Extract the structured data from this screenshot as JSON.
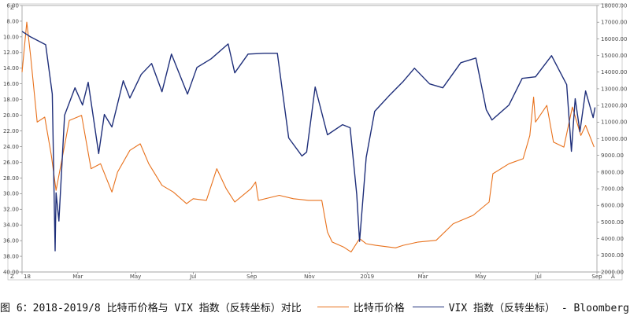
{
  "chart_data": {
    "type": "line",
    "x_range": [
      "2018-01-01",
      "2019-09-01"
    ],
    "x_ticks": [
      {
        "date": "2018-01-01",
        "label": "18"
      },
      {
        "date": "2018-03-01",
        "label": "Mar"
      },
      {
        "date": "2018-05-01",
        "label": "May"
      },
      {
        "date": "2018-07-01",
        "label": "Jul"
      },
      {
        "date": "2018-09-01",
        "label": "Sep"
      },
      {
        "date": "2018-11-01",
        "label": "Nov"
      },
      {
        "date": "2019-01-01",
        "label": "2019"
      },
      {
        "date": "2019-03-01",
        "label": "Mar"
      },
      {
        "date": "2019-05-01",
        "label": "May"
      },
      {
        "date": "2019-07-01",
        "label": "Jul"
      },
      {
        "date": "2019-09-01",
        "label": "Sep"
      }
    ],
    "left_axis": {
      "reversed": true,
      "range": [
        6,
        40
      ],
      "ticks": [
        "6.00",
        "8.00",
        "10.00",
        "12.00",
        "14.00",
        "16.00",
        "18.00",
        "20.00",
        "22.00",
        "24.00",
        "26.00",
        "28.00",
        "30.00",
        "32.00",
        "34.00",
        "36.00",
        "38.00",
        "40.00"
      ],
      "tick_values": [
        6,
        8,
        10,
        12,
        14,
        16,
        18,
        20,
        22,
        24,
        26,
        28,
        30,
        32,
        34,
        36,
        38,
        40
      ]
    },
    "right_axis": {
      "range": [
        2000,
        18000
      ],
      "ticks": [
        "2000.00",
        "3000.00",
        "4000.00",
        "5000.00",
        "6000.00",
        "7000.00",
        "8000.00",
        "9000.00",
        "10000.00",
        "11000.00",
        "12000.00",
        "13000.00",
        "14000.00",
        "15000.00",
        "16000.00",
        "17000.00",
        "18000.00"
      ],
      "tick_values": [
        2000,
        3000,
        4000,
        5000,
        6000,
        7000,
        8000,
        9000,
        10000,
        11000,
        12000,
        13000,
        14000,
        15000,
        16000,
        17000,
        18000
      ]
    },
    "corner_labels": {
      "left_top": "Z",
      "left_bottom": "Z",
      "right_bottom": "A"
    },
    "series": [
      {
        "name": "比特币价格",
        "color": "#e8711c",
        "axis": "right",
        "points": [
          [
            "2018-01-01",
            14000
          ],
          [
            "2018-01-06",
            17000
          ],
          [
            "2018-01-10",
            15000
          ],
          [
            "2018-01-17",
            11000
          ],
          [
            "2018-01-25",
            11300
          ],
          [
            "2018-02-01",
            9000
          ],
          [
            "2018-02-06",
            6900
          ],
          [
            "2018-02-20",
            11100
          ],
          [
            "2018-03-05",
            11400
          ],
          [
            "2018-03-15",
            8200
          ],
          [
            "2018-03-25",
            8500
          ],
          [
            "2018-04-06",
            6800
          ],
          [
            "2018-04-12",
            8000
          ],
          [
            "2018-04-25",
            9300
          ],
          [
            "2018-05-06",
            9700
          ],
          [
            "2018-05-15",
            8500
          ],
          [
            "2018-05-29",
            7200
          ],
          [
            "2018-06-10",
            6800
          ],
          [
            "2018-06-24",
            6100
          ],
          [
            "2018-07-01",
            6400
          ],
          [
            "2018-07-15",
            6300
          ],
          [
            "2018-07-26",
            8200
          ],
          [
            "2018-08-05",
            7000
          ],
          [
            "2018-08-14",
            6200
          ],
          [
            "2018-08-31",
            7000
          ],
          [
            "2018-09-05",
            7400
          ],
          [
            "2018-09-08",
            6300
          ],
          [
            "2018-09-30",
            6600
          ],
          [
            "2018-10-15",
            6400
          ],
          [
            "2018-10-31",
            6300
          ],
          [
            "2018-11-14",
            6300
          ],
          [
            "2018-11-20",
            4400
          ],
          [
            "2018-11-25",
            3800
          ],
          [
            "2018-12-07",
            3500
          ],
          [
            "2018-12-15",
            3200
          ],
          [
            "2018-12-24",
            4000
          ],
          [
            "2018-12-31",
            3700
          ],
          [
            "2019-01-10",
            3600
          ],
          [
            "2019-01-31",
            3450
          ],
          [
            "2019-02-08",
            3600
          ],
          [
            "2019-02-24",
            3800
          ],
          [
            "2019-03-15",
            3900
          ],
          [
            "2019-04-02",
            4900
          ],
          [
            "2019-04-23",
            5400
          ],
          [
            "2019-05-10",
            6200
          ],
          [
            "2019-05-14",
            7900
          ],
          [
            "2019-05-31",
            8500
          ],
          [
            "2019-06-15",
            8800
          ],
          [
            "2019-06-22",
            10200
          ],
          [
            "2019-06-26",
            12500
          ],
          [
            "2019-06-28",
            11000
          ],
          [
            "2019-07-10",
            12000
          ],
          [
            "2019-07-17",
            9800
          ],
          [
            "2019-07-28",
            9500
          ],
          [
            "2019-08-06",
            11900
          ],
          [
            "2019-08-15",
            10200
          ],
          [
            "2019-08-20",
            10800
          ],
          [
            "2019-08-29",
            9500
          ]
        ]
      },
      {
        "name": "VIX 指数（反转坐标）",
        "color": "#1f2f7a",
        "axis": "left",
        "points": [
          [
            "2018-01-01",
            9.3
          ],
          [
            "2018-01-10",
            10.0
          ],
          [
            "2018-01-26",
            11.0
          ],
          [
            "2018-02-02",
            17.3
          ],
          [
            "2018-02-05",
            37.3
          ],
          [
            "2018-02-06",
            29.9
          ],
          [
            "2018-02-09",
            33.5
          ],
          [
            "2018-02-15",
            20.0
          ],
          [
            "2018-02-26",
            16.5
          ],
          [
            "2018-03-06",
            18.7
          ],
          [
            "2018-03-12",
            15.8
          ],
          [
            "2018-03-23",
            24.9
          ],
          [
            "2018-03-29",
            19.9
          ],
          [
            "2018-04-06",
            21.5
          ],
          [
            "2018-04-18",
            15.6
          ],
          [
            "2018-04-25",
            17.8
          ],
          [
            "2018-05-07",
            14.8
          ],
          [
            "2018-05-18",
            13.4
          ],
          [
            "2018-05-29",
            17.0
          ],
          [
            "2018-06-08",
            12.2
          ],
          [
            "2018-06-25",
            17.3
          ],
          [
            "2018-07-05",
            13.9
          ],
          [
            "2018-07-20",
            12.8
          ],
          [
            "2018-08-07",
            10.9
          ],
          [
            "2018-08-14",
            14.6
          ],
          [
            "2018-08-28",
            12.2
          ],
          [
            "2018-09-14",
            12.1
          ],
          [
            "2018-09-28",
            12.1
          ],
          [
            "2018-10-10",
            22.9
          ],
          [
            "2018-10-24",
            25.2
          ],
          [
            "2018-10-29",
            24.7
          ],
          [
            "2018-11-07",
            16.4
          ],
          [
            "2018-11-20",
            22.5
          ],
          [
            "2018-12-06",
            21.2
          ],
          [
            "2018-12-14",
            21.6
          ],
          [
            "2018-12-21",
            30.1
          ],
          [
            "2018-12-24",
            36.1
          ],
          [
            "2018-12-31",
            25.4
          ],
          [
            "2019-01-09",
            19.5
          ],
          [
            "2019-01-25",
            17.4
          ],
          [
            "2019-02-08",
            15.7
          ],
          [
            "2019-02-20",
            14.0
          ],
          [
            "2019-03-08",
            16.0
          ],
          [
            "2019-03-22",
            16.5
          ],
          [
            "2019-04-10",
            13.3
          ],
          [
            "2019-04-26",
            12.7
          ],
          [
            "2019-05-07",
            19.3
          ],
          [
            "2019-05-13",
            20.6
          ],
          [
            "2019-05-31",
            18.7
          ],
          [
            "2019-06-14",
            15.3
          ],
          [
            "2019-06-28",
            15.1
          ],
          [
            "2019-07-15",
            12.4
          ],
          [
            "2019-07-31",
            16.1
          ],
          [
            "2019-08-05",
            24.6
          ],
          [
            "2019-08-09",
            17.9
          ],
          [
            "2019-08-14",
            22.1
          ],
          [
            "2019-08-20",
            16.9
          ],
          [
            "2019-08-28",
            20.3
          ],
          [
            "2019-08-30",
            19.0
          ]
        ]
      }
    ]
  },
  "caption": {
    "title": "图 6：2018-2019/8 比特币价格与 VIX 指数（反转坐标）对比",
    "legend_btc": "比特币价格",
    "legend_vix": "VIX 指数（反转坐标） - Bloomberg"
  }
}
